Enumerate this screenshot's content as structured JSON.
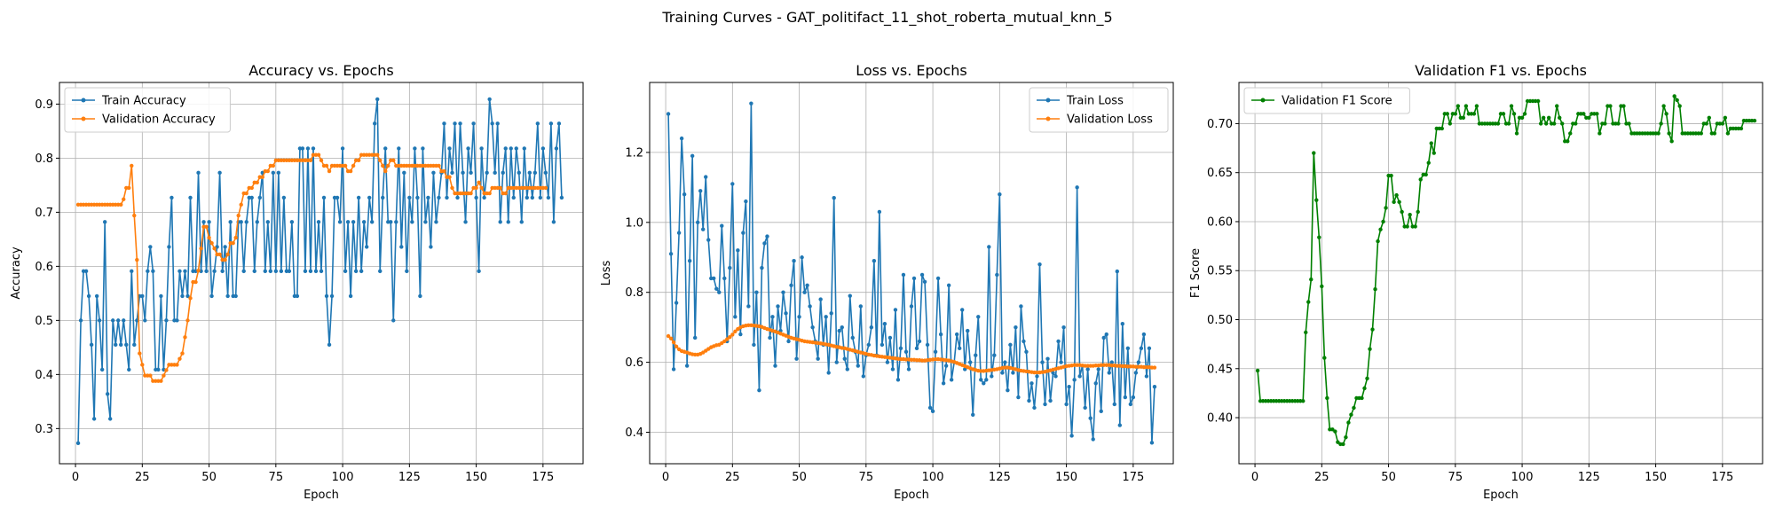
{
  "figure_title": "Training Curves - GAT_politifact_11_shot_roberta_mutual_knn_5",
  "chart_data": [
    {
      "type": "line",
      "title": "Accuracy vs. Epochs",
      "xlabel": "Epoch",
      "ylabel": "Accuracy",
      "xlim": [
        -6,
        190
      ],
      "ylim": [
        0.235,
        0.94
      ],
      "xticks": [
        0,
        25,
        50,
        75,
        100,
        125,
        150,
        175
      ],
      "yticks": [
        0.3,
        0.4,
        0.5,
        0.6,
        0.7,
        0.8,
        0.9
      ],
      "grid": true,
      "legend": "top-left",
      "series": [
        {
          "name": "Train Accuracy",
          "color": "#1f77b4",
          "start": 1,
          "values": [
            0.273,
            0.5,
            0.591,
            0.591,
            0.545,
            0.455,
            0.318,
            0.545,
            0.5,
            0.409,
            0.682,
            0.364,
            0.318,
            0.5,
            0.455,
            0.5,
            0.455,
            0.5,
            0.455,
            0.409,
            0.591,
            0.455,
            0.5,
            0.545,
            0.545,
            0.5,
            0.591,
            0.636,
            0.591,
            0.409,
            0.409,
            0.545,
            0.409,
            0.5,
            0.636,
            0.727,
            0.5,
            0.5,
            0.591,
            0.545,
            0.591,
            0.545,
            0.727,
            0.591,
            0.591,
            0.773,
            0.591,
            0.682,
            0.591,
            0.682,
            0.545,
            0.591,
            0.636,
            0.773,
            0.591,
            0.636,
            0.545,
            0.682,
            0.545,
            0.545,
            0.682,
            0.682,
            0.591,
            0.682,
            0.727,
            0.727,
            0.591,
            0.682,
            0.727,
            0.773,
            0.591,
            0.682,
            0.591,
            0.773,
            0.591,
            0.773,
            0.591,
            0.727,
            0.591,
            0.591,
            0.682,
            0.545,
            0.545,
            0.818,
            0.818,
            0.591,
            0.818,
            0.591,
            0.818,
            0.591,
            0.682,
            0.591,
            0.727,
            0.545,
            0.455,
            0.545,
            0.727,
            0.727,
            0.682,
            0.818,
            0.591,
            0.682,
            0.545,
            0.682,
            0.591,
            0.727,
            0.591,
            0.682,
            0.636,
            0.727,
            0.682,
            0.864,
            0.909,
            0.591,
            0.727,
            0.818,
            0.682,
            0.682,
            0.5,
            0.682,
            0.818,
            0.636,
            0.773,
            0.591,
            0.727,
            0.682,
            0.818,
            0.727,
            0.545,
            0.818,
            0.682,
            0.727,
            0.636,
            0.773,
            0.682,
            0.727,
            0.773,
            0.864,
            0.727,
            0.818,
            0.773,
            0.864,
            0.727,
            0.864,
            0.773,
            0.682,
            0.818,
            0.773,
            0.864,
            0.727,
            0.591,
            0.818,
            0.727,
            0.773,
            0.909,
            0.864,
            0.773,
            0.864,
            0.682,
            0.773,
            0.818,
            0.682,
            0.818,
            0.727,
            0.818,
            0.773,
            0.682,
            0.818,
            0.727,
            0.773,
            0.727,
            0.773,
            0.864,
            0.727,
            0.818,
            0.773,
            0.727,
            0.864,
            0.682,
            0.818,
            0.864,
            0.727
          ]
        },
        {
          "name": "Validation Accuracy",
          "color": "#ff7f0e",
          "start": 1,
          "values": [
            0.714,
            0.714,
            0.714,
            0.714,
            0.714,
            0.714,
            0.714,
            0.714,
            0.714,
            0.714,
            0.714,
            0.714,
            0.714,
            0.714,
            0.714,
            0.714,
            0.714,
            0.724,
            0.745,
            0.745,
            0.786,
            0.694,
            0.612,
            0.439,
            0.418,
            0.398,
            0.398,
            0.398,
            0.388,
            0.388,
            0.388,
            0.388,
            0.398,
            0.408,
            0.418,
            0.418,
            0.418,
            0.418,
            0.429,
            0.439,
            0.469,
            0.5,
            0.541,
            0.571,
            0.571,
            0.592,
            0.633,
            0.673,
            0.673,
            0.653,
            0.643,
            0.633,
            0.622,
            0.622,
            0.612,
            0.612,
            0.622,
            0.643,
            0.643,
            0.653,
            0.694,
            0.714,
            0.735,
            0.735,
            0.745,
            0.745,
            0.755,
            0.755,
            0.765,
            0.765,
            0.776,
            0.776,
            0.786,
            0.786,
            0.796,
            0.796,
            0.796,
            0.796,
            0.796,
            0.796,
            0.796,
            0.796,
            0.796,
            0.796,
            0.796,
            0.796,
            0.796,
            0.796,
            0.806,
            0.806,
            0.806,
            0.796,
            0.786,
            0.786,
            0.776,
            0.786,
            0.786,
            0.786,
            0.786,
            0.786,
            0.786,
            0.776,
            0.776,
            0.786,
            0.796,
            0.796,
            0.806,
            0.806,
            0.806,
            0.806,
            0.806,
            0.806,
            0.806,
            0.796,
            0.786,
            0.776,
            0.786,
            0.796,
            0.796,
            0.786,
            0.786,
            0.786,
            0.786,
            0.786,
            0.786,
            0.786,
            0.786,
            0.786,
            0.786,
            0.786,
            0.786,
            0.786,
            0.786,
            0.786,
            0.786,
            0.786,
            0.776,
            0.776,
            0.765,
            0.765,
            0.745,
            0.735,
            0.735,
            0.735,
            0.735,
            0.735,
            0.735,
            0.735,
            0.745,
            0.745,
            0.755,
            0.745,
            0.735,
            0.735,
            0.735,
            0.745,
            0.745,
            0.745,
            0.745,
            0.735,
            0.735,
            0.745,
            0.745,
            0.745,
            0.745,
            0.745,
            0.745,
            0.745,
            0.745,
            0.745,
            0.745,
            0.745,
            0.745,
            0.745,
            0.745,
            0.745
          ]
        }
      ]
    },
    {
      "type": "line",
      "title": "Loss vs. Epochs",
      "xlabel": "Epoch",
      "ylabel": "Loss",
      "xlim": [
        -6,
        190
      ],
      "ylim": [
        0.31,
        1.4
      ],
      "xticks": [
        0,
        25,
        50,
        75,
        100,
        125,
        150,
        175
      ],
      "yticks": [
        0.4,
        0.6,
        0.8,
        1.0,
        1.2
      ],
      "grid": true,
      "legend": "top-right",
      "series": [
        {
          "name": "Train Loss",
          "color": "#1f77b4",
          "start": 1,
          "values": [
            1.31,
            0.91,
            0.58,
            0.77,
            0.97,
            1.24,
            1.08,
            0.59,
            0.89,
            1.19,
            0.67,
            1.0,
            1.09,
            0.98,
            1.13,
            0.95,
            0.84,
            0.84,
            0.81,
            0.8,
            0.99,
            0.84,
            0.66,
            0.87,
            1.11,
            0.73,
            0.92,
            0.68,
            0.97,
            1.06,
            0.76,
            1.34,
            0.65,
            0.8,
            0.52,
            0.87,
            0.94,
            0.96,
            0.67,
            0.73,
            0.59,
            0.76,
            0.69,
            0.8,
            0.74,
            0.66,
            0.82,
            0.89,
            0.61,
            0.73,
            0.9,
            0.8,
            0.82,
            0.76,
            0.7,
            0.66,
            0.61,
            0.78,
            0.65,
            0.73,
            0.57,
            0.74,
            1.07,
            0.6,
            0.69,
            0.7,
            0.61,
            0.58,
            0.79,
            0.67,
            0.63,
            0.59,
            0.76,
            0.56,
            0.62,
            0.65,
            0.7,
            0.89,
            0.62,
            1.03,
            0.65,
            0.71,
            0.6,
            0.67,
            0.58,
            0.75,
            0.55,
            0.64,
            0.85,
            0.63,
            0.58,
            0.76,
            0.84,
            0.64,
            0.66,
            0.85,
            0.83,
            0.65,
            0.47,
            0.46,
            0.63,
            0.84,
            0.68,
            0.54,
            0.59,
            0.82,
            0.55,
            0.6,
            0.68,
            0.64,
            0.75,
            0.58,
            0.69,
            0.6,
            0.45,
            0.62,
            0.73,
            0.55,
            0.54,
            0.55,
            0.93,
            0.56,
            0.62,
            0.85,
            1.08,
            0.57,
            0.6,
            0.52,
            0.65,
            0.57,
            0.7,
            0.5,
            0.76,
            0.66,
            0.63,
            0.49,
            0.54,
            0.47,
            0.56,
            0.88,
            0.6,
            0.48,
            0.61,
            0.49,
            0.57,
            0.56,
            0.66,
            0.6,
            0.7,
            0.48,
            0.53,
            0.39,
            0.55,
            1.1,
            0.56,
            0.59,
            0.47,
            0.58,
            0.44,
            0.38,
            0.54,
            0.58,
            0.46,
            0.67,
            0.68,
            0.57,
            0.6,
            0.48,
            0.86,
            0.42,
            0.71,
            0.5,
            0.64,
            0.48,
            0.5,
            0.57,
            0.6,
            0.64,
            0.68,
            0.56,
            0.64,
            0.37,
            0.53
          ]
        },
        {
          "name": "Validation Loss",
          "color": "#ff7f0e",
          "start": 1,
          "values": [
            0.675,
            0.668,
            0.657,
            0.645,
            0.637,
            0.632,
            0.63,
            0.628,
            0.625,
            0.623,
            0.622,
            0.622,
            0.624,
            0.628,
            0.633,
            0.638,
            0.643,
            0.646,
            0.649,
            0.65,
            0.655,
            0.66,
            0.666,
            0.672,
            0.679,
            0.688,
            0.695,
            0.7,
            0.703,
            0.705,
            0.706,
            0.706,
            0.705,
            0.704,
            0.703,
            0.701,
            0.698,
            0.695,
            0.693,
            0.69,
            0.688,
            0.685,
            0.682,
            0.679,
            0.676,
            0.673,
            0.67,
            0.668,
            0.666,
            0.664,
            0.662,
            0.66,
            0.659,
            0.658,
            0.657,
            0.656,
            0.655,
            0.654,
            0.653,
            0.651,
            0.65,
            0.648,
            0.646,
            0.644,
            0.643,
            0.641,
            0.64,
            0.638,
            0.636,
            0.634,
            0.632,
            0.63,
            0.628,
            0.626,
            0.624,
            0.622,
            0.621,
            0.619,
            0.618,
            0.617,
            0.616,
            0.615,
            0.614,
            0.613,
            0.612,
            0.611,
            0.61,
            0.609,
            0.609,
            0.608,
            0.608,
            0.607,
            0.607,
            0.606,
            0.606,
            0.605,
            0.605,
            0.606,
            0.607,
            0.608,
            0.609,
            0.609,
            0.608,
            0.607,
            0.606,
            0.605,
            0.603,
            0.601,
            0.598,
            0.595,
            0.592,
            0.589,
            0.586,
            0.583,
            0.58,
            0.578,
            0.576,
            0.575,
            0.575,
            0.576,
            0.577,
            0.578,
            0.579,
            0.58,
            0.582,
            0.584,
            0.585,
            0.585,
            0.584,
            0.582,
            0.58,
            0.578,
            0.576,
            0.575,
            0.574,
            0.573,
            0.572,
            0.571,
            0.571,
            0.571,
            0.572,
            0.573,
            0.575,
            0.577,
            0.579,
            0.581,
            0.583,
            0.585,
            0.587,
            0.589,
            0.59,
            0.591,
            0.592,
            0.592,
            0.592,
            0.591,
            0.59,
            0.59,
            0.59,
            0.59,
            0.591,
            0.591,
            0.592,
            0.592,
            0.592,
            0.592,
            0.591,
            0.591,
            0.59,
            0.59,
            0.589,
            0.589,
            0.588,
            0.588,
            0.588,
            0.587,
            0.587,
            0.587,
            0.586,
            0.586,
            0.586,
            0.585,
            0.585
          ]
        }
      ]
    },
    {
      "type": "line",
      "title": "Validation F1 vs. Epochs",
      "xlabel": "Epoch",
      "ylabel": "F1 Score",
      "xlim": [
        -6,
        190
      ],
      "ylim": [
        0.353,
        0.742
      ],
      "xticks": [
        0,
        25,
        50,
        75,
        100,
        125,
        150,
        175
      ],
      "yticks": [
        0.4,
        0.45,
        0.5,
        0.55,
        0.6,
        0.65,
        0.7
      ],
      "grid": true,
      "legend": "top-left",
      "series": [
        {
          "name": "Validation F1 Score",
          "color": "#008000",
          "start": 1,
          "values": [
            0.448,
            0.417,
            0.417,
            0.417,
            0.417,
            0.417,
            0.417,
            0.417,
            0.417,
            0.417,
            0.417,
            0.417,
            0.417,
            0.417,
            0.417,
            0.417,
            0.417,
            0.417,
            0.487,
            0.518,
            0.541,
            0.67,
            0.622,
            0.584,
            0.534,
            0.461,
            0.42,
            0.388,
            0.388,
            0.386,
            0.375,
            0.373,
            0.373,
            0.38,
            0.395,
            0.403,
            0.41,
            0.42,
            0.42,
            0.42,
            0.43,
            0.44,
            0.47,
            0.49,
            0.531,
            0.58,
            0.592,
            0.6,
            0.614,
            0.647,
            0.647,
            0.62,
            0.627,
            0.62,
            0.61,
            0.595,
            0.595,
            0.607,
            0.595,
            0.595,
            0.61,
            0.643,
            0.648,
            0.648,
            0.66,
            0.68,
            0.67,
            0.695,
            0.695,
            0.695,
            0.71,
            0.71,
            0.7,
            0.71,
            0.71,
            0.718,
            0.706,
            0.706,
            0.718,
            0.71,
            0.71,
            0.71,
            0.718,
            0.7,
            0.7,
            0.7,
            0.7,
            0.7,
            0.7,
            0.7,
            0.7,
            0.71,
            0.71,
            0.7,
            0.7,
            0.718,
            0.71,
            0.69,
            0.706,
            0.706,
            0.71,
            0.723,
            0.723,
            0.723,
            0.723,
            0.723,
            0.7,
            0.706,
            0.7,
            0.706,
            0.7,
            0.7,
            0.718,
            0.706,
            0.7,
            0.682,
            0.682,
            0.69,
            0.7,
            0.7,
            0.71,
            0.71,
            0.71,
            0.706,
            0.706,
            0.71,
            0.71,
            0.71,
            0.69,
            0.7,
            0.7,
            0.718,
            0.718,
            0.7,
            0.7,
            0.7,
            0.718,
            0.718,
            0.7,
            0.7,
            0.69,
            0.69,
            0.69,
            0.69,
            0.69,
            0.69,
            0.69,
            0.69,
            0.69,
            0.69,
            0.69,
            0.7,
            0.718,
            0.71,
            0.69,
            0.682,
            0.728,
            0.724,
            0.718,
            0.69,
            0.69,
            0.69,
            0.69,
            0.69,
            0.69,
            0.69,
            0.69,
            0.7,
            0.7,
            0.706,
            0.69,
            0.69,
            0.7,
            0.7,
            0.7,
            0.706,
            0.69,
            0.695,
            0.695,
            0.695,
            0.695,
            0.695,
            0.703,
            0.703,
            0.703,
            0.703,
            0.703
          ]
        }
      ]
    }
  ]
}
